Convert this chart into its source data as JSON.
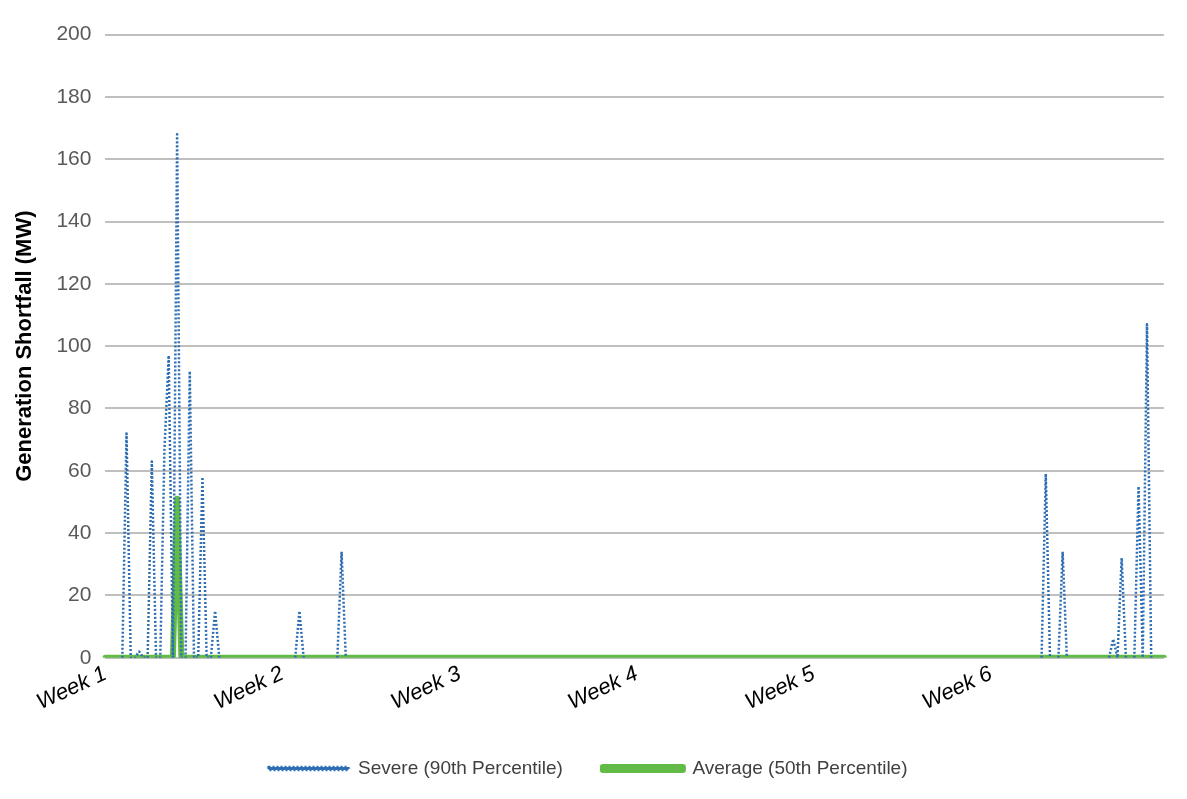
{
  "chart_data": {
    "type": "line",
    "ylabel": "Generation Shortfall (MW)",
    "categories": [
      "Week 1",
      null,
      null,
      null,
      null,
      null,
      null,
      null,
      null,
      null,
      null,
      null,
      null,
      null,
      null,
      null,
      null,
      null,
      null,
      null,
      null,
      null,
      null,
      null,
      null,
      null,
      null,
      null,
      null,
      null,
      null,
      null,
      null,
      null,
      null,
      null,
      null,
      null,
      null,
      null,
      null,
      null,
      "Week 2",
      null,
      null,
      null,
      null,
      null,
      null,
      null,
      null,
      null,
      null,
      null,
      null,
      null,
      null,
      null,
      null,
      null,
      null,
      null,
      null,
      null,
      null,
      null,
      null,
      null,
      null,
      null,
      null,
      null,
      null,
      null,
      null,
      null,
      null,
      null,
      null,
      null,
      null,
      null,
      null,
      null,
      "Week 3",
      null,
      null,
      null,
      null,
      null,
      null,
      null,
      null,
      null,
      null,
      null,
      null,
      null,
      null,
      null,
      null,
      null,
      null,
      null,
      null,
      null,
      null,
      null,
      null,
      null,
      null,
      null,
      null,
      null,
      null,
      null,
      null,
      null,
      null,
      null,
      null,
      null,
      null,
      null,
      null,
      null,
      "Week 4",
      null,
      null,
      null,
      null,
      null,
      null,
      null,
      null,
      null,
      null,
      null,
      null,
      null,
      null,
      null,
      null,
      null,
      null,
      null,
      null,
      null,
      null,
      null,
      null,
      null,
      null,
      null,
      null,
      null,
      null,
      null,
      null,
      null,
      null,
      null,
      null,
      null,
      null,
      null,
      null,
      null,
      "Week 5",
      null,
      null,
      null,
      null,
      null,
      null,
      null,
      null,
      null,
      null,
      null,
      null,
      null,
      null,
      null,
      null,
      null,
      null,
      null,
      null,
      null,
      null,
      null,
      null,
      null,
      null,
      null,
      null,
      null,
      null,
      null,
      null,
      null,
      null,
      null,
      null,
      null,
      null,
      null,
      null,
      null,
      "Week 6",
      null,
      null,
      null,
      null,
      null,
      null,
      null,
      null,
      null,
      null,
      null,
      null,
      null,
      null,
      null,
      null,
      null,
      null,
      null,
      null,
      null,
      null,
      null,
      null,
      null,
      null,
      null,
      null,
      null,
      null,
      null,
      null,
      null,
      null,
      null,
      null,
      null,
      null,
      null,
      null,
      null
    ],
    "ylim": [
      0,
      200
    ],
    "yticks": [
      0,
      20,
      40,
      60,
      80,
      100,
      120,
      140,
      160,
      180,
      200
    ],
    "grid": "y",
    "legend": "bottom",
    "marker": "none",
    "series": [
      {
        "name": "Severe (90th Percentile)",
        "color": "#2e6eb5",
        "line_style": "dotted",
        "values": [
          null,
          null,
          null,
          null,
          0,
          72,
          0,
          0,
          2,
          0,
          0,
          63,
          0,
          0,
          67,
          97,
          0,
          168,
          0,
          0,
          92,
          0,
          0,
          58,
          0,
          0,
          15,
          0,
          null,
          null,
          null,
          null,
          null,
          null,
          null,
          null,
          null,
          null,
          null,
          null,
          null,
          null,
          null,
          null,
          null,
          0,
          15,
          0,
          null,
          null,
          null,
          null,
          null,
          null,
          null,
          0,
          34,
          0,
          null,
          null,
          null,
          null,
          null,
          null,
          null,
          null,
          null,
          null,
          null,
          null,
          null,
          null,
          null,
          null,
          null,
          null,
          null,
          null,
          null,
          null,
          null,
          null,
          null,
          null,
          null,
          null,
          null,
          null,
          null,
          null,
          null,
          null,
          null,
          null,
          null,
          null,
          null,
          null,
          null,
          null,
          null,
          null,
          null,
          null,
          null,
          null,
          null,
          null,
          null,
          null,
          null,
          null,
          null,
          null,
          null,
          null,
          null,
          null,
          null,
          null,
          null,
          null,
          null,
          null,
          null,
          null,
          null,
          null,
          null,
          null,
          null,
          null,
          null,
          null,
          null,
          null,
          null,
          null,
          null,
          null,
          null,
          null,
          null,
          null,
          null,
          null,
          null,
          null,
          null,
          null,
          null,
          null,
          null,
          null,
          null,
          null,
          null,
          null,
          null,
          null,
          null,
          null,
          null,
          null,
          null,
          null,
          null,
          null,
          null,
          null,
          null,
          null,
          null,
          null,
          null,
          null,
          null,
          null,
          null,
          null,
          null,
          null,
          null,
          null,
          null,
          null,
          null,
          null,
          null,
          null,
          null,
          null,
          null,
          null,
          null,
          null,
          null,
          null,
          null,
          null,
          null,
          null,
          null,
          null,
          null,
          null,
          null,
          null,
          null,
          null,
          null,
          null,
          null,
          null,
          null,
          null,
          null,
          null,
          null,
          null,
          null,
          null,
          0,
          59,
          0,
          null,
          0,
          34,
          0,
          null,
          null,
          null,
          null,
          null,
          null,
          null,
          null,
          null,
          0,
          6,
          0,
          32,
          0,
          null,
          0,
          55,
          0,
          107,
          0,
          null,
          null,
          null
        ]
      },
      {
        "name": "Average (50th Percentile)",
        "color": "#62bb46",
        "line_style": "solid",
        "values": [
          0,
          0,
          0,
          0,
          0,
          0,
          0,
          0,
          0,
          0,
          0,
          0,
          0,
          0,
          0,
          0,
          0,
          51,
          0,
          0,
          0,
          0,
          0,
          0,
          0,
          0,
          0,
          0,
          0,
          0,
          0,
          0,
          0,
          0,
          0,
          0,
          0,
          0,
          0,
          0,
          0,
          0,
          0,
          0,
          0,
          0,
          0,
          0,
          0,
          0,
          0,
          0,
          0,
          0,
          0,
          0,
          0,
          0,
          0,
          0,
          0,
          0,
          0,
          0,
          0,
          0,
          0,
          0,
          0,
          0,
          0,
          0,
          0,
          0,
          0,
          0,
          0,
          0,
          0,
          0,
          0,
          0,
          0,
          0,
          0,
          0,
          0,
          0,
          0,
          0,
          0,
          0,
          0,
          0,
          0,
          0,
          0,
          0,
          0,
          0,
          0,
          0,
          0,
          0,
          0,
          0,
          0,
          0,
          0,
          0,
          0,
          0,
          0,
          0,
          0,
          0,
          0,
          0,
          0,
          0,
          0,
          0,
          0,
          0,
          0,
          0,
          0,
          0,
          0,
          0,
          0,
          0,
          0,
          0,
          0,
          0,
          0,
          0,
          0,
          0,
          0,
          0,
          0,
          0,
          0,
          0,
          0,
          0,
          0,
          0,
          0,
          0,
          0,
          0,
          0,
          0,
          0,
          0,
          0,
          0,
          0,
          0,
          0,
          0,
          0,
          0,
          0,
          0,
          0,
          0,
          0,
          0,
          0,
          0,
          0,
          0,
          0,
          0,
          0,
          0,
          0,
          0,
          0,
          0,
          0,
          0,
          0,
          0,
          0,
          0,
          0,
          0,
          0,
          0,
          0,
          0,
          0,
          0,
          0,
          0,
          0,
          0,
          0,
          0,
          0,
          0,
          0,
          0,
          0,
          0,
          0,
          0,
          0,
          0,
          0,
          0,
          0,
          0,
          0,
          0,
          0,
          0,
          0,
          0,
          0,
          0,
          0,
          0,
          0,
          0,
          0,
          0,
          0,
          0,
          0,
          0,
          0,
          0,
          0,
          0,
          0,
          0,
          0,
          0,
          0,
          0,
          0,
          0,
          0,
          0,
          0,
          0
        ]
      }
    ]
  }
}
